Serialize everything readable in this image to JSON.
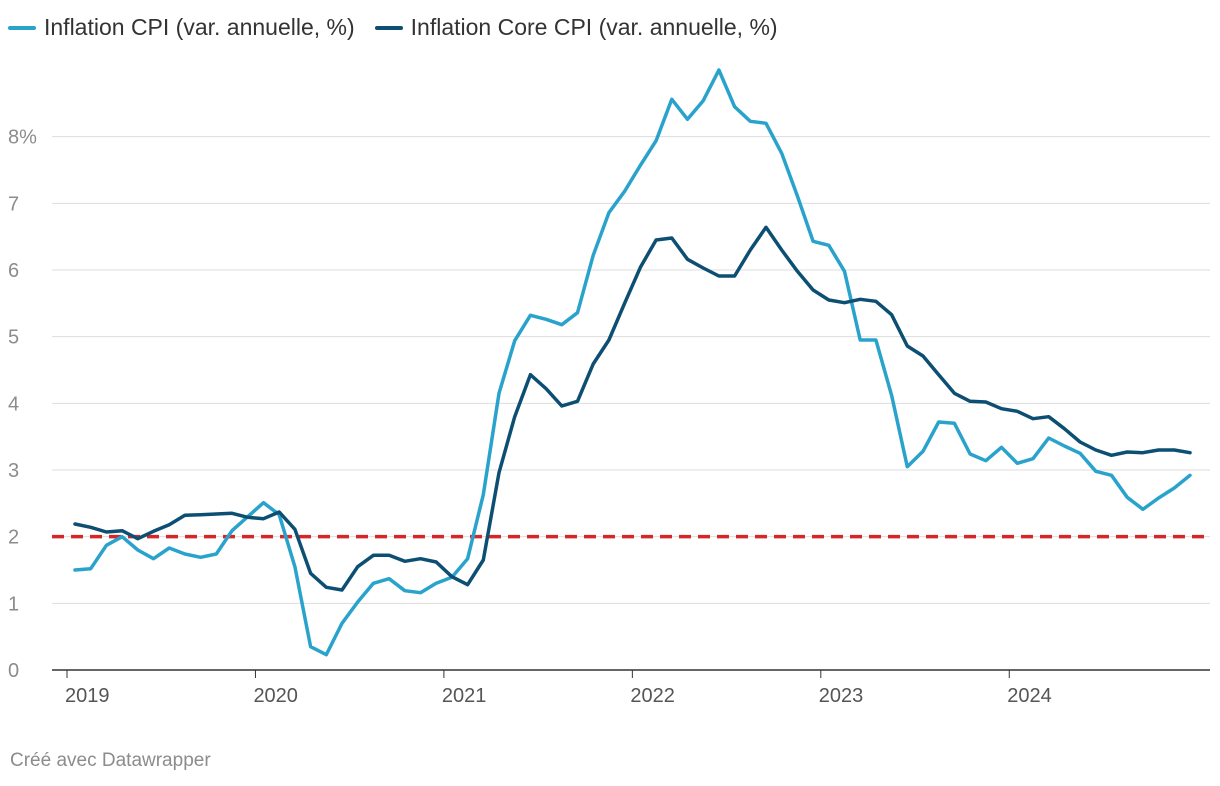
{
  "chart_data": {
    "type": "line",
    "title": "",
    "xlabel": "",
    "ylabel": "",
    "ylim": [
      0,
      9
    ],
    "y_ticks": [
      {
        "value": 0,
        "label": "0"
      },
      {
        "value": 1,
        "label": "1"
      },
      {
        "value": 2,
        "label": "2"
      },
      {
        "value": 3,
        "label": "3"
      },
      {
        "value": 4,
        "label": "4"
      },
      {
        "value": 5,
        "label": "5"
      },
      {
        "value": 6,
        "label": "6"
      },
      {
        "value": 7,
        "label": "7"
      },
      {
        "value": 8,
        "label": "8%"
      }
    ],
    "x_ticks": [
      {
        "index": 0,
        "label": "2019"
      },
      {
        "index": 12,
        "label": "2020"
      },
      {
        "index": 24,
        "label": "2021"
      },
      {
        "index": 36,
        "label": "2022"
      },
      {
        "index": 48,
        "label": "2023"
      },
      {
        "index": 60,
        "label": "2024"
      }
    ],
    "x_count": 72,
    "reference_line": {
      "value": 2,
      "color": "#d62728",
      "style": "dashed"
    },
    "series": [
      {
        "name": "Inflation CPI (var. annuelle, %)",
        "color": "#29a3cc",
        "values": [
          1.5,
          1.52,
          1.87,
          2.0,
          1.8,
          1.67,
          1.83,
          1.74,
          1.69,
          1.74,
          2.09,
          2.3,
          2.51,
          2.33,
          1.55,
          0.35,
          0.23,
          0.7,
          1.02,
          1.3,
          1.37,
          1.19,
          1.16,
          1.3,
          1.39,
          1.67,
          2.63,
          4.15,
          4.94,
          5.32,
          5.26,
          5.18,
          5.36,
          6.22,
          6.86,
          7.18,
          7.57,
          7.94,
          8.56,
          8.26,
          8.54,
          9.0,
          8.45,
          8.23,
          8.2,
          7.75,
          7.11,
          6.43,
          6.37,
          5.98,
          4.95,
          4.95,
          4.12,
          3.05,
          3.28,
          3.72,
          3.7,
          3.24,
          3.14,
          3.34,
          3.1,
          3.17,
          3.48,
          3.36,
          3.25,
          2.98,
          2.92,
          2.59,
          2.41,
          2.58,
          2.73,
          2.92
        ]
      },
      {
        "name": "Inflation Core CPI (var. annuelle, %)",
        "color": "#0d4f73",
        "values": [
          2.19,
          2.14,
          2.07,
          2.09,
          1.97,
          2.08,
          2.18,
          2.32,
          2.33,
          2.34,
          2.35,
          2.29,
          2.27,
          2.37,
          2.11,
          1.45,
          1.24,
          1.2,
          1.55,
          1.72,
          1.72,
          1.63,
          1.67,
          1.62,
          1.4,
          1.28,
          1.65,
          2.96,
          3.8,
          4.43,
          4.22,
          3.96,
          4.03,
          4.59,
          4.95,
          5.5,
          6.04,
          6.45,
          6.48,
          6.16,
          6.03,
          5.91,
          5.91,
          6.3,
          6.64,
          6.3,
          5.98,
          5.7,
          5.55,
          5.51,
          5.56,
          5.53,
          5.33,
          4.86,
          4.71,
          4.43,
          4.15,
          4.03,
          4.02,
          3.92,
          3.88,
          3.77,
          3.8,
          3.62,
          3.42,
          3.3,
          3.22,
          3.27,
          3.26,
          3.3,
          3.3,
          3.26
        ]
      }
    ]
  },
  "footer": "Créé avec Datawrapper"
}
